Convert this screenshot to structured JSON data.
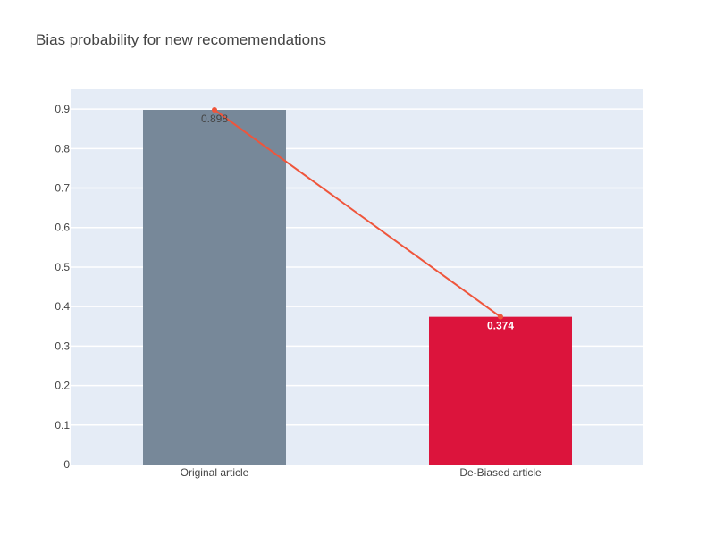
{
  "chart_data": {
    "type": "bar",
    "title": "Bias probability for new recomemendations",
    "xlabel": "",
    "ylabel": "",
    "categories": [
      "Original article",
      "De-Biased article"
    ],
    "values": [
      0.898,
      0.374
    ],
    "data_labels": [
      "0.898",
      "0.374"
    ],
    "bar_colors": [
      "#778899",
      "#dc143c"
    ],
    "label_colors": [
      "#444444",
      "#ffffff"
    ],
    "overlay_line": {
      "type": "line",
      "values": [
        0.898,
        0.374
      ],
      "color": "#ef553b"
    },
    "ylim": [
      0,
      0.95
    ],
    "yticks": [
      0,
      0.1,
      0.2,
      0.3,
      0.4,
      0.5,
      0.6,
      0.7,
      0.8,
      0.9
    ],
    "ytick_labels": [
      "0",
      "0.1",
      "0.2",
      "0.3",
      "0.4",
      "0.5",
      "0.6",
      "0.7",
      "0.8",
      "0.9"
    ],
    "grid": true,
    "legend": "none",
    "plot_background": "#e5ecf6"
  }
}
